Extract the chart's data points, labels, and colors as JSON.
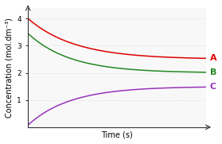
{
  "title": "",
  "xlabel": "Time (s)",
  "ylabel": "Concentration (mol.dm⁻³)",
  "ylim": [
    0,
    4.4
  ],
  "xlim": [
    0,
    10
  ],
  "yticks": [
    1,
    2,
    3,
    4
  ],
  "background_color": "#ffffff",
  "plot_bg_color": "#f8f8f8",
  "grid_color": "#c8c8c8",
  "curves": [
    {
      "label": "A",
      "color": "#dd0000",
      "start": 4.0,
      "end": 2.5,
      "decay": 0.38
    },
    {
      "label": "B",
      "color": "#228822",
      "start": 3.45,
      "end": 2.0,
      "decay": 0.42
    },
    {
      "label": "C",
      "color": "#9933bb",
      "start": 0.08,
      "end": 1.5,
      "decay": 0.42
    }
  ],
  "label_fontsize": 8,
  "tick_fontsize": 6.5,
  "axis_label_fontsize": 7
}
